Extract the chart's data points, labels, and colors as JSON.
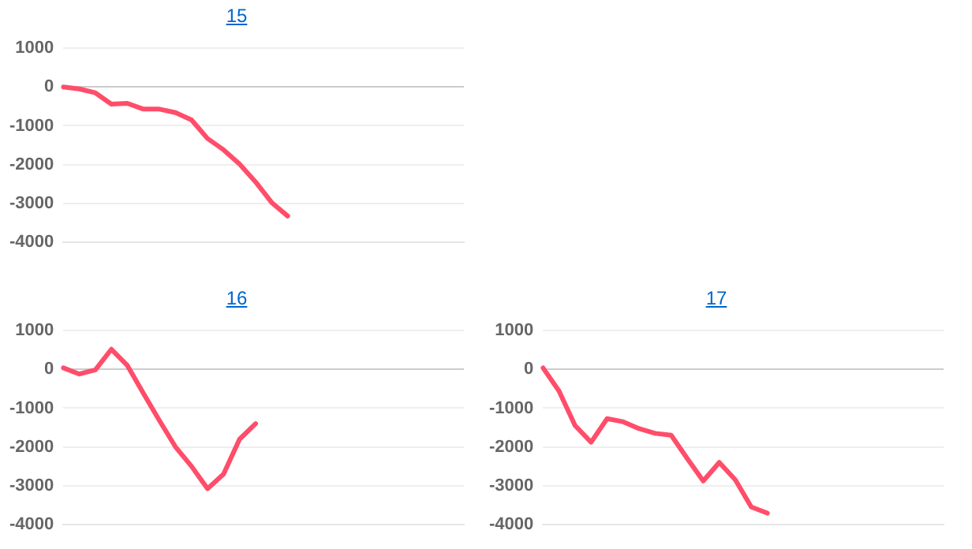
{
  "chart_data": [
    {
      "type": "line",
      "title": "15",
      "categories": [
        null,
        null,
        null,
        null,
        null,
        null,
        null,
        null,
        null,
        null,
        null,
        null,
        null,
        null,
        null,
        null,
        null,
        null,
        null,
        null,
        null,
        null,
        null,
        null,
        null,
        null
      ],
      "series": [
        {
          "color": "#ff4d6a",
          "values": [
            0,
            -50,
            -150,
            -440,
            -420,
            -570,
            -570,
            -660,
            -850,
            -1330,
            -1620,
            -1990,
            -2450,
            -2980,
            -3330,
            null,
            null,
            null,
            null,
            null,
            null,
            null,
            null,
            null,
            null,
            null
          ]
        }
      ],
      "ylim": [
        -4000,
        1000
      ],
      "yticks": [
        -4000,
        -3000,
        -2000,
        -1000,
        0,
        1000
      ],
      "grid": "y",
      "tick_labels": "y",
      "legend": false,
      "marker": "none",
      "line_style": "solid"
    },
    {
      "type": "line",
      "title": "16",
      "categories": [
        null,
        null,
        null,
        null,
        null,
        null,
        null,
        null,
        null,
        null,
        null,
        null,
        null,
        null,
        null,
        null,
        null,
        null,
        null,
        null,
        null,
        null,
        null,
        null,
        null,
        null
      ],
      "series": [
        {
          "color": "#ff4d6a",
          "values": [
            40,
            -120,
            -10,
            520,
            100,
            -620,
            -1320,
            -2000,
            -2500,
            -3080,
            -2700,
            -1800,
            -1400,
            null,
            null,
            null,
            null,
            null,
            null,
            null,
            null,
            null,
            null,
            null,
            null,
            null
          ]
        }
      ],
      "ylim": [
        -4000,
        1000
      ],
      "yticks": [
        -4000,
        -3000,
        -2000,
        -1000,
        0,
        1000
      ],
      "grid": "y",
      "tick_labels": "y",
      "legend": false,
      "marker": "none",
      "line_style": "solid"
    },
    {
      "type": "line",
      "title": "17",
      "categories": [
        null,
        null,
        null,
        null,
        null,
        null,
        null,
        null,
        null,
        null,
        null,
        null,
        null,
        null,
        null,
        null,
        null,
        null,
        null,
        null,
        null,
        null,
        null,
        null,
        null,
        null
      ],
      "series": [
        {
          "color": "#ff4d6a",
          "values": [
            40,
            -560,
            -1450,
            -1880,
            -1270,
            -1350,
            -1530,
            -1650,
            -1700,
            -2300,
            -2880,
            -2400,
            -2850,
            -3550,
            -3710,
            null,
            null,
            null,
            null,
            null,
            null,
            null,
            null,
            null,
            null,
            null
          ]
        }
      ],
      "ylim": [
        -4000,
        1000
      ],
      "yticks": [
        -4000,
        -3000,
        -2000,
        -1000,
        0,
        1000
      ],
      "grid": "y",
      "tick_labels": "y",
      "legend": false,
      "marker": "none",
      "line_style": "solid"
    }
  ]
}
